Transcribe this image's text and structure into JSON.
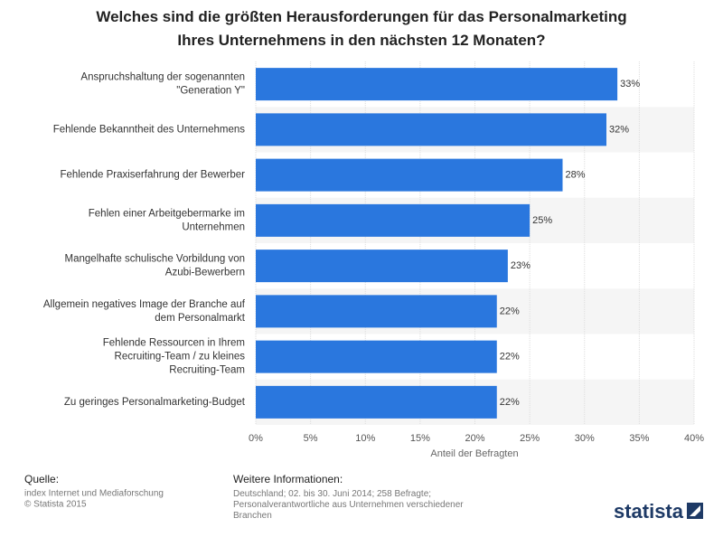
{
  "chart_data": {
    "type": "bar",
    "orientation": "horizontal",
    "title": "Welches sind die größten Herausforderungen für das Personalmarketing Ihres Unternehmens in den nächsten 12 Monaten?",
    "categories": [
      "Anspruchshaltung der sogenannten \"Generation Y\"",
      "Fehlende Bekanntheit des Unternehmens",
      "Fehlende Praxiserfahrung der Bewerber",
      "Fehlen einer Arbeitgebermarke im Unternehmen",
      "Mangelhafte schulische Vorbildung von Azubi-Bewerbern",
      "Allgemein negatives Image der Branche auf dem Personalmarkt",
      "Fehlende Ressourcen in Ihrem Recruiting-Team / zu kleines Recruiting-Team",
      "Zu geringes Personalmarketing-Budget"
    ],
    "values": [
      33,
      32,
      28,
      25,
      23,
      22,
      22,
      22
    ],
    "value_labels": [
      "33%",
      "32%",
      "28%",
      "25%",
      "23%",
      "22%",
      "22%",
      "22%"
    ],
    "color": "#2a77de",
    "xlabel": "Anteil der Befragten",
    "xlim": [
      0,
      40
    ],
    "xticks": [
      {
        "value": 0,
        "label": "0%"
      },
      {
        "value": 5,
        "label": "5%"
      },
      {
        "value": 10,
        "label": "10%"
      },
      {
        "value": 15,
        "label": "15%"
      },
      {
        "value": 20,
        "label": "20%"
      },
      {
        "value": 25,
        "label": "25%"
      },
      {
        "value": 30,
        "label": "30%"
      },
      {
        "value": 35,
        "label": "35%"
      },
      {
        "value": 40,
        "label": "40%"
      }
    ],
    "grid": true
  },
  "footer": {
    "source_heading": "Quelle:",
    "source_lines": [
      "index Internet und Mediaforschung",
      "© Statista 2015"
    ],
    "info_heading": "Weitere Informationen:",
    "info_text": "Deutschland; 02. bis 30. Juni 2014; 258 Befragte; Personalverantwortliche aus Unternehmen verschiedener Branchen",
    "logo": "statista"
  }
}
